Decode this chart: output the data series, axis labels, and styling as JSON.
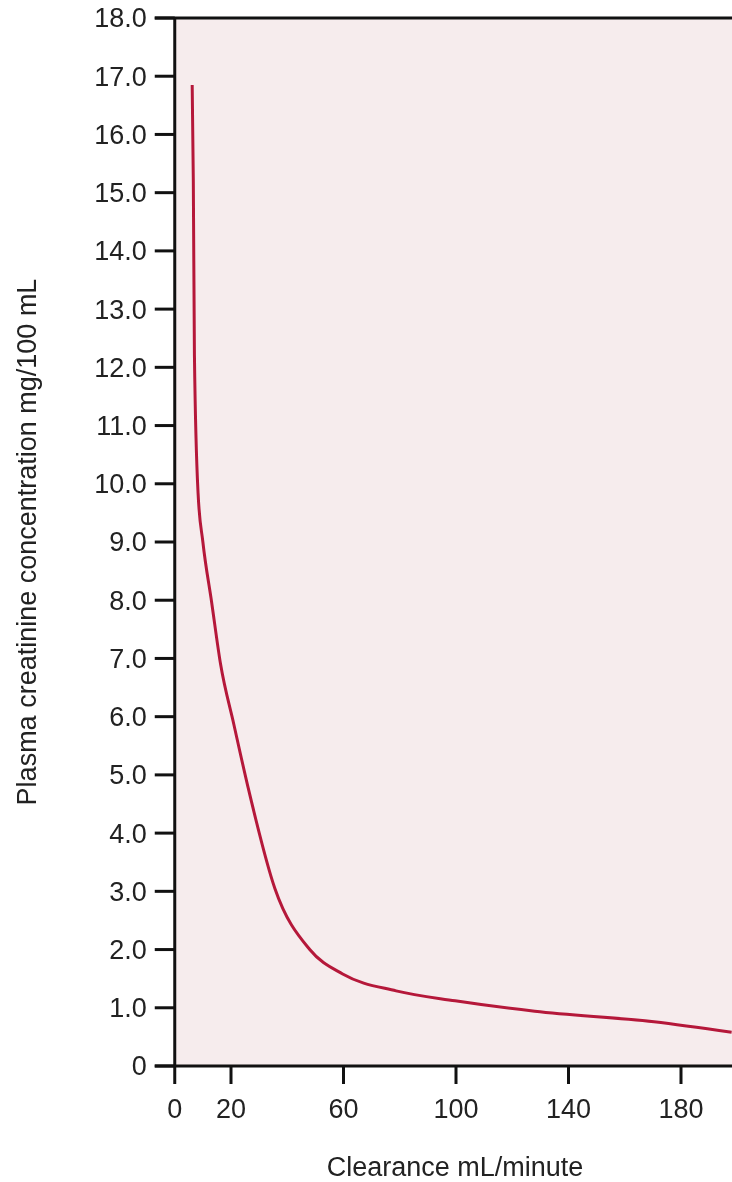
{
  "chart_data": {
    "type": "line",
    "xlabel": "Clearance mL/minute",
    "ylabel": "Plasma creatinine concentration mg/100 mL",
    "x": [
      6.2,
      6.6,
      7.0,
      8.3,
      10.0,
      13.1,
      16.3,
      21,
      26,
      35.6,
      48,
      59.7,
      78.7,
      99.7,
      128,
      170.4,
      198
    ],
    "series": [
      {
        "color": "#b5183a",
        "values": [
          16.85,
          15.2,
          12.2,
          9.83,
          9.0,
          7.97,
          6.9,
          5.87,
          4.8,
          3.05,
          2.0,
          1.58,
          1.29,
          1.12,
          0.94,
          0.76,
          0.58
        ]
      }
    ],
    "xlim": [
      0,
      200
    ],
    "xticks": [
      0,
      20,
      60,
      100,
      140,
      180
    ],
    "ylim": [
      0,
      18
    ],
    "yticks": [
      0,
      {
        "value": 1,
        "label": "1.0"
      },
      {
        "value": 2,
        "label": "2.0"
      },
      {
        "value": 3,
        "label": "3.0"
      },
      {
        "value": 4,
        "label": "4.0"
      },
      {
        "value": 5,
        "label": "5.0"
      },
      {
        "value": 6,
        "label": "6.0"
      },
      {
        "value": 7,
        "label": "7.0"
      },
      {
        "value": 8,
        "label": "8.0"
      },
      {
        "value": 9,
        "label": "9.0"
      },
      {
        "value": 10,
        "label": "10.0"
      },
      {
        "value": 11,
        "label": "11.0"
      },
      {
        "value": 12,
        "label": "12.0"
      },
      {
        "value": 13,
        "label": "13.0"
      },
      {
        "value": 14,
        "label": "14.0"
      },
      {
        "value": 15,
        "label": "15.0"
      },
      {
        "value": 16,
        "label": "16.0"
      },
      {
        "value": 17,
        "label": "17.0"
      },
      {
        "value": 18,
        "label": "18.0"
      }
    ],
    "grid": false,
    "marker": "none",
    "line_style": "solid"
  }
}
